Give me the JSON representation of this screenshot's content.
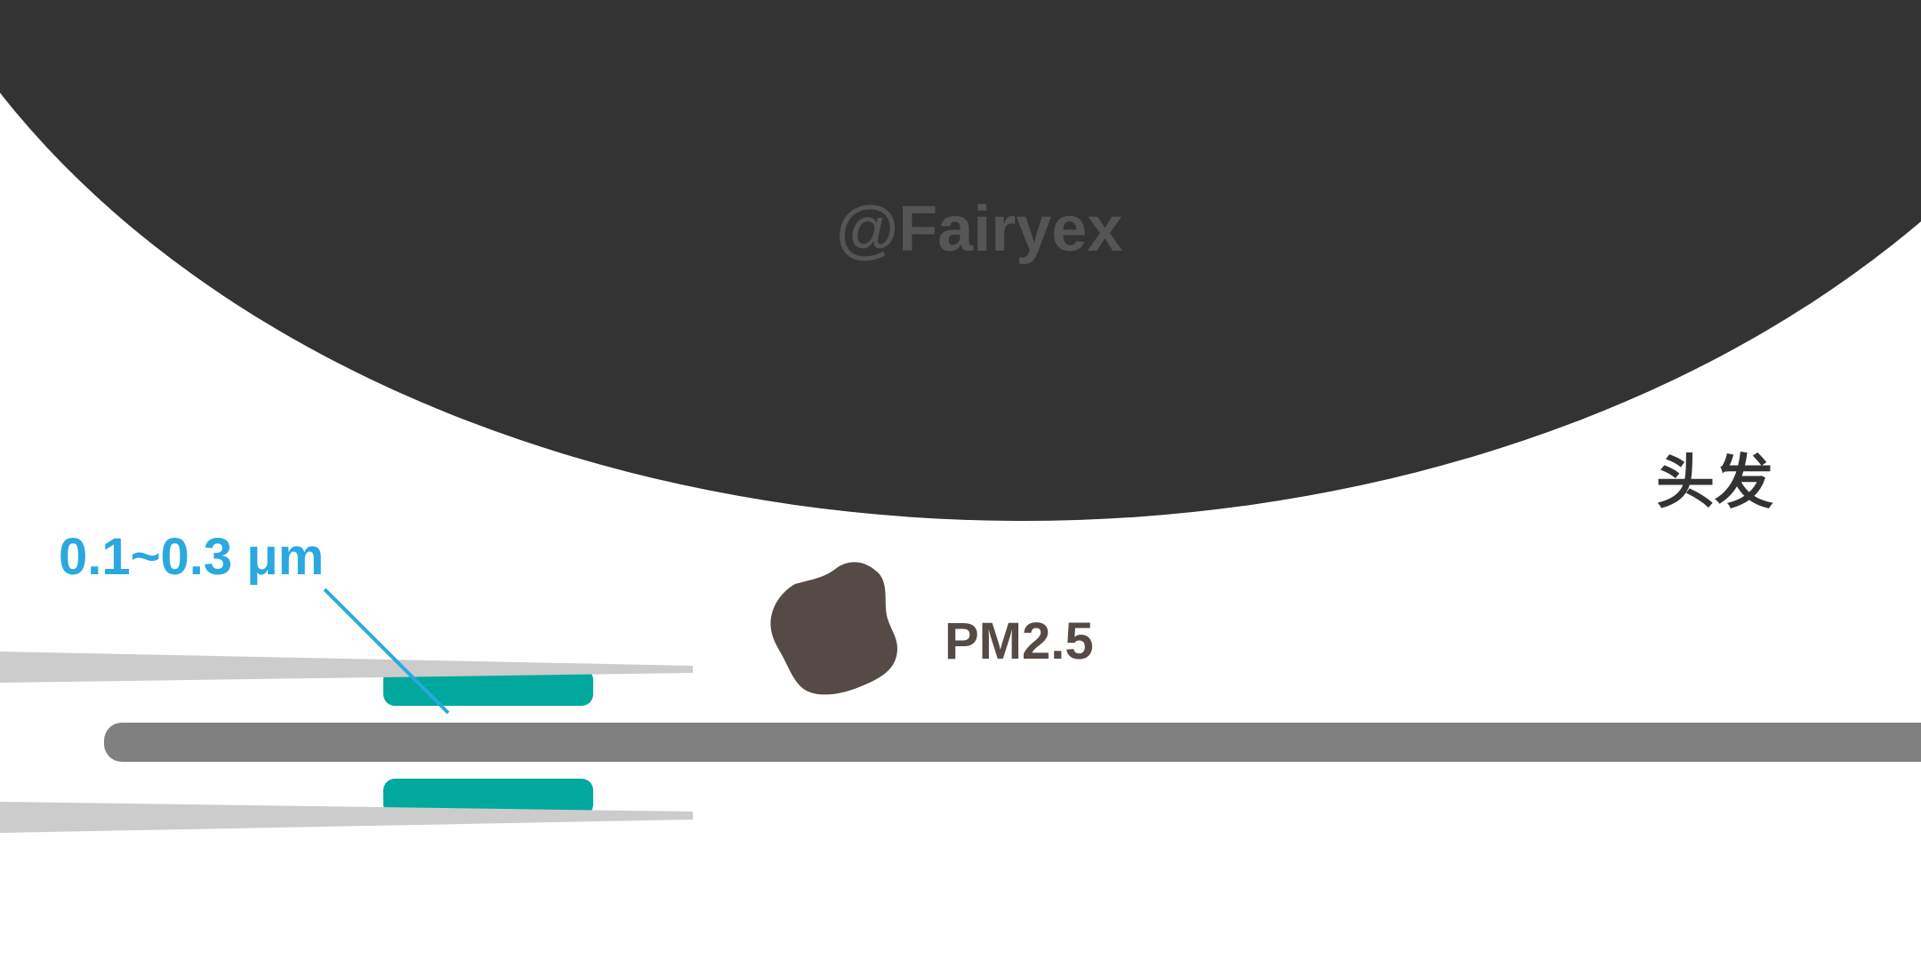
{
  "diagram": {
    "watermark": "@Fairyex",
    "hair_label": "头发",
    "particle_label": "PM2.5",
    "size_label": "0.1~0.3 μm"
  },
  "colors": {
    "hair": "#333333",
    "watermark": "#555555",
    "hair_label": "#333333",
    "particle": "#554a45",
    "particle_label": "#554a45",
    "size_label": "#2aa8e0",
    "fiber_core": "#808080",
    "fiber_sheath": "#cccccc",
    "electret": "#00a89d"
  }
}
